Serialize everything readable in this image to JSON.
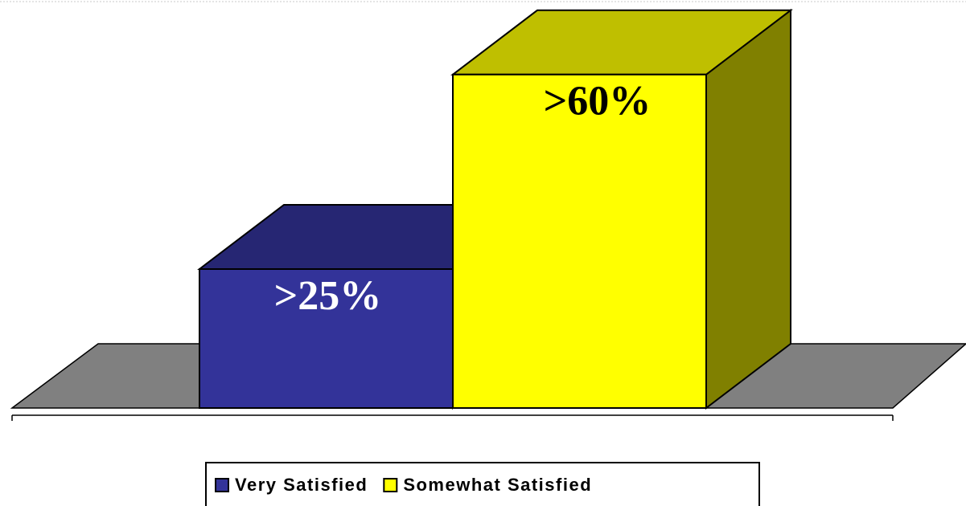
{
  "chart_data": {
    "type": "bar",
    "series": [
      {
        "name": "Very Satisfied",
        "color": "#333399",
        "values": [
          25
        ],
        "value_labels": [
          ">25%"
        ]
      },
      {
        "name": "Somewhat Satisfied",
        "color": "#ffff00",
        "values": [
          60
        ],
        "value_labels": [
          ">60%"
        ]
      }
    ]
  }
}
